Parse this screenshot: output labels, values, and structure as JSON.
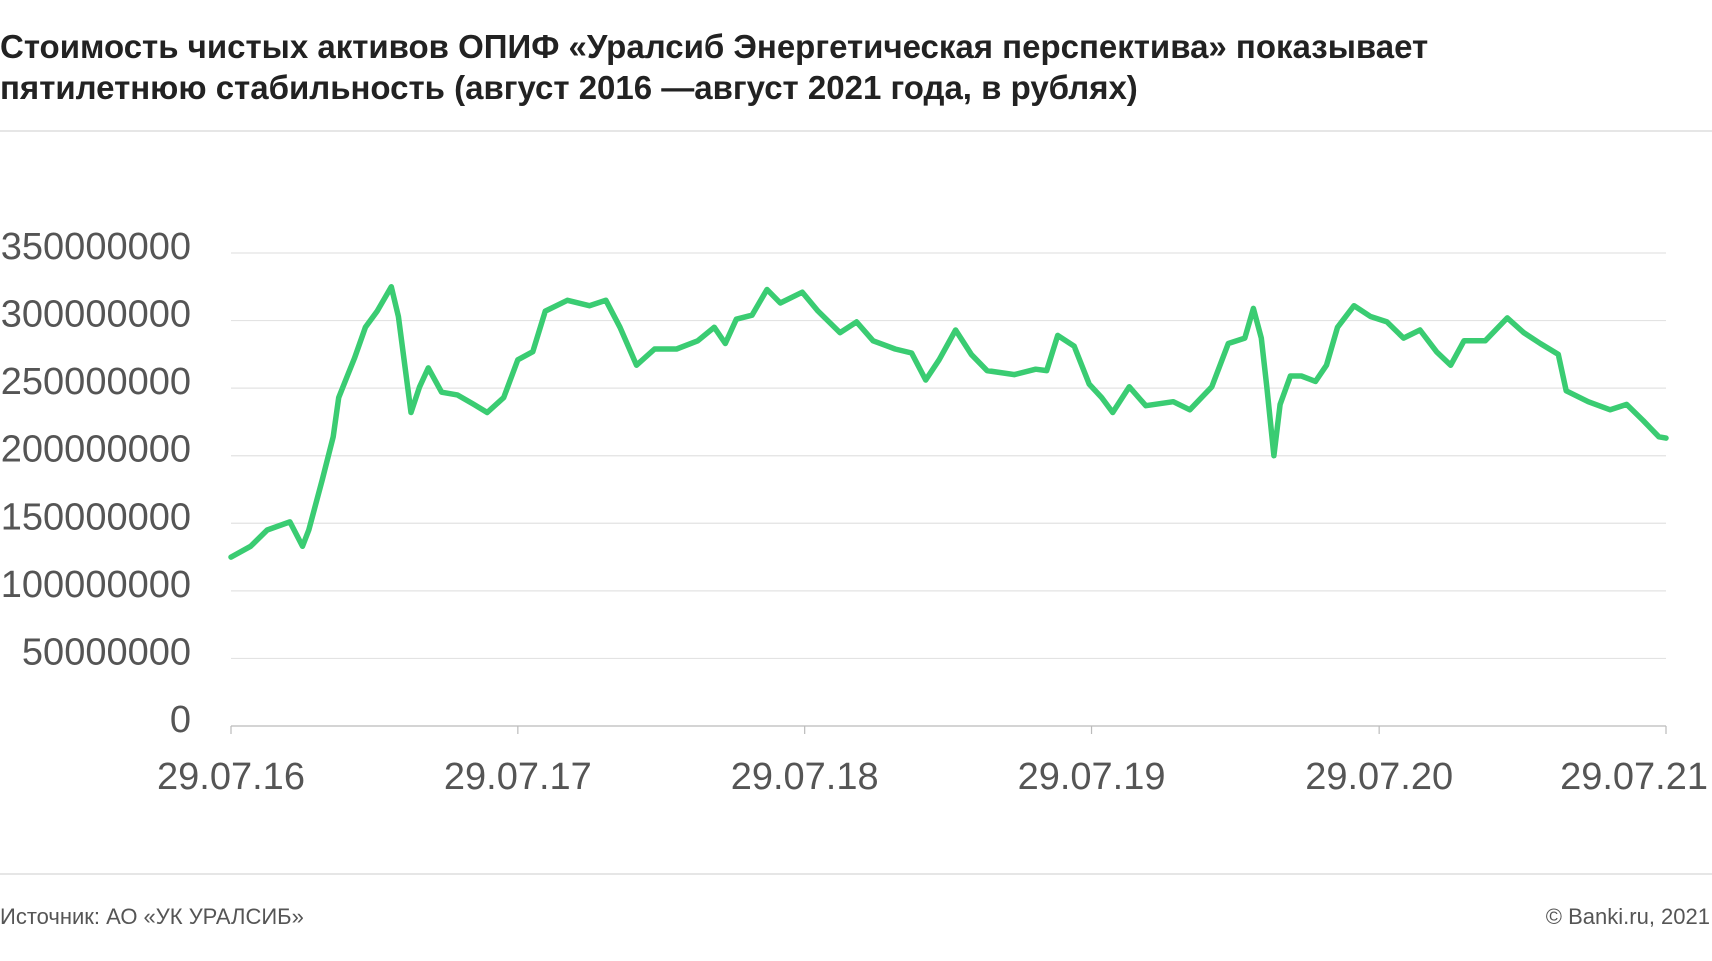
{
  "chart_data": {
    "type": "line",
    "title": "Стоимость чистых активов ОПИФ «Уралсиб Энергетическая перспектива» показывает пятилетнюю стабильность (август 2016 —август 2021 года, в рублях)",
    "source": "Источник: АО «УК УРАЛСИБ»",
    "credit": "© Banki.ru, 2021",
    "color": "#3acc72",
    "grid": true,
    "x": [
      "2016-07-29",
      "2016-08-23",
      "2016-09-13",
      "2016-10-12",
      "2016-10-28",
      "2016-11-05",
      "2016-11-22",
      "2016-12-06",
      "2016-12-13",
      "2016-12-24",
      "2017-01-02",
      "2017-01-16",
      "2017-01-31",
      "2017-02-18",
      "2017-02-27",
      "2017-03-08",
      "2017-03-15",
      "2017-03-26",
      "2017-04-06",
      "2017-04-23",
      "2017-05-13",
      "2017-06-03",
      "2017-06-20",
      "2017-07-11",
      "2017-07-29",
      "2017-08-17",
      "2017-09-02",
      "2017-09-30",
      "2017-10-28",
      "2017-11-18",
      "2017-12-06",
      "2017-12-27",
      "2018-01-19",
      "2018-02-16",
      "2018-03-15",
      "2018-04-05",
      "2018-04-19",
      "2018-05-03",
      "2018-05-23",
      "2018-06-11",
      "2018-06-28",
      "2018-07-26",
      "2018-08-15",
      "2018-09-12",
      "2018-10-03",
      "2018-10-24",
      "2018-11-21",
      "2018-12-12",
      "2018-12-30",
      "2019-01-16",
      "2019-02-06",
      "2019-02-26",
      "2019-03-18",
      "2019-04-22",
      "2019-05-19",
      "2019-06-02",
      "2019-06-16",
      "2019-07-07",
      "2019-07-26",
      "2019-08-11",
      "2019-08-25",
      "2019-09-15",
      "2019-10-06",
      "2019-11-10",
      "2019-12-01",
      "2019-12-29",
      "2020-01-19",
      "2020-02-09",
      "2020-02-20",
      "2020-03-01",
      "2020-03-08",
      "2020-03-17",
      "2020-03-25",
      "2020-04-07",
      "2020-04-21",
      "2020-05-09",
      "2020-05-23",
      "2020-06-06",
      "2020-06-27",
      "2020-07-18",
      "2020-08-08",
      "2020-08-29",
      "2020-09-19",
      "2020-10-10",
      "2020-10-28",
      "2020-11-14",
      "2020-12-11",
      "2021-01-08",
      "2021-01-29",
      "2021-02-19",
      "2021-03-14",
      "2021-03-24",
      "2021-04-21",
      "2021-05-19",
      "2021-06-09",
      "2021-06-30",
      "2021-07-20",
      "2021-07-29"
    ],
    "values": [
      125000000,
      133000000,
      145000000,
      151000000,
      133000000,
      145000000,
      182000000,
      214000000,
      243000000,
      259000000,
      272000000,
      295000000,
      307000000,
      325000000,
      303000000,
      263000000,
      232000000,
      251000000,
      265000000,
      247000000,
      245000000,
      238000000,
      232000000,
      243000000,
      271000000,
      277000000,
      307000000,
      315000000,
      311000000,
      315000000,
      295000000,
      267000000,
      279000000,
      279000000,
      285000000,
      295000000,
      283000000,
      301000000,
      304000000,
      323000000,
      313000000,
      321000000,
      307000000,
      291000000,
      299000000,
      285000000,
      279000000,
      276000000,
      256000000,
      271000000,
      293000000,
      275000000,
      263000000,
      260000000,
      264000000,
      263000000,
      289000000,
      281000000,
      253000000,
      243000000,
      232000000,
      251000000,
      237000000,
      240000000,
      234000000,
      251000000,
      283000000,
      287000000,
      309000000,
      287000000,
      251000000,
      200000000,
      238000000,
      259000000,
      259000000,
      255000000,
      267000000,
      295000000,
      311000000,
      303000000,
      299000000,
      287000000,
      293000000,
      277000000,
      267000000,
      285000000,
      285000000,
      302000000,
      291000000,
      283000000,
      275000000,
      248000000,
      240000000,
      234000000,
      238000000,
      226000000,
      214000000,
      213000000
    ],
    "xlim": [
      "2016-07-29",
      "2021-07-29"
    ],
    "xticks": [
      {
        "value": "2016-07-29",
        "label": "29.07.16"
      },
      {
        "value": "2017-07-29",
        "label": "29.07.17"
      },
      {
        "value": "2018-07-29",
        "label": "29.07.18"
      },
      {
        "value": "2019-07-29",
        "label": "29.07.19"
      },
      {
        "value": "2020-07-29",
        "label": "29.07.20"
      },
      {
        "value": "2021-07-29",
        "label": "29.07.21"
      }
    ],
    "ylim": [
      0,
      350000000
    ],
    "yticks": [
      0,
      50000000,
      100000000,
      150000000,
      200000000,
      250000000,
      300000000,
      350000000
    ]
  }
}
